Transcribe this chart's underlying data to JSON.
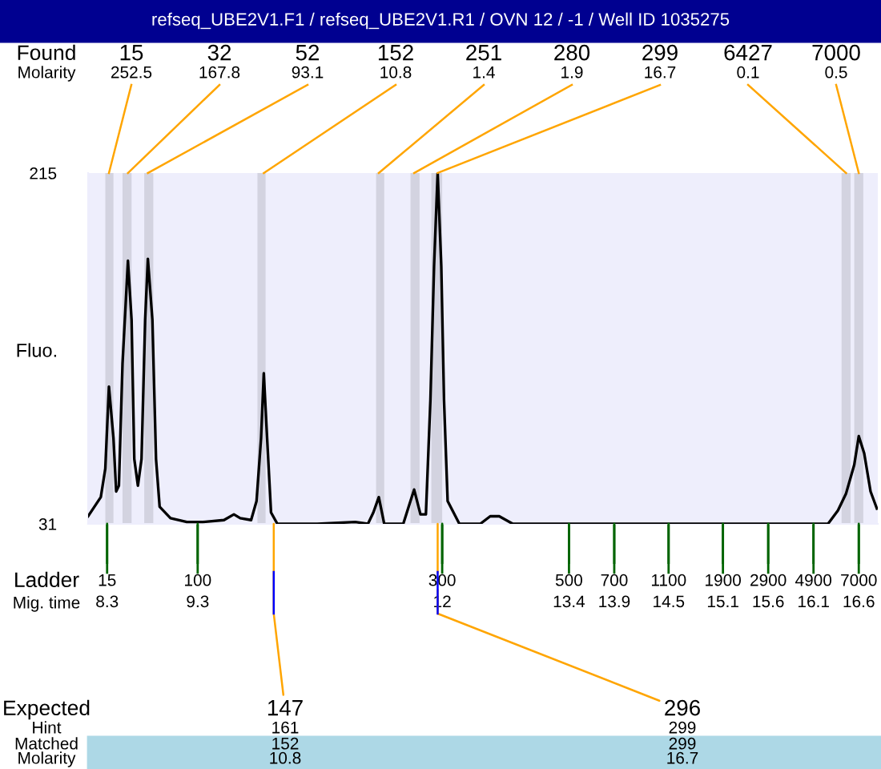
{
  "chart_data": {
    "type": "line",
    "title": "refseq_UBE2V1.F1 / refseq_UBE2V1.R1 / OVN 12 / -1 / Well ID 1035275",
    "ylabel": "Fluo.",
    "color": "#000000",
    "grid": false,
    "x": [
      8.09,
      8.23,
      8.28,
      8.32,
      8.37,
      8.4,
      8.43,
      8.47,
      8.53,
      8.57,
      8.6,
      8.64,
      8.68,
      8.72,
      8.75,
      8.8,
      8.84,
      8.88,
      9.0,
      9.18,
      9.36,
      9.59,
      9.7,
      9.77,
      9.89,
      9.95,
      10.0,
      10.03,
      10.06,
      10.11,
      10.18,
      10.48,
      10.62,
      11.04,
      11.18,
      11.24,
      11.3,
      11.36,
      11.57,
      11.63,
      11.69,
      11.76,
      11.82,
      11.87,
      11.91,
      11.95,
      11.99,
      12.02,
      12.06,
      12.19,
      12.42,
      12.53,
      12.63,
      12.78,
      13.13,
      13.31,
      14.14,
      14.64,
      15.61,
      16.26,
      16.37,
      16.46,
      16.55,
      16.6,
      16.66,
      16.73,
      16.8
    ],
    "values": [
      35,
      45,
      60,
      103,
      76,
      48,
      51,
      115,
      169,
      138,
      65,
      51,
      65,
      138,
      170,
      138,
      65,
      40,
      34,
      32,
      32,
      33,
      36,
      34,
      33,
      43,
      76,
      110,
      82,
      37,
      31,
      31,
      31,
      32,
      31,
      37,
      45,
      31,
      31,
      40,
      49,
      36,
      36,
      96,
      166,
      215,
      166,
      96,
      43,
      31,
      31,
      35,
      35,
      31,
      31,
      31,
      31,
      31,
      31,
      31,
      38,
      47,
      62,
      77,
      68,
      48,
      39
    ],
    "xlim": [
      8.09,
      16.81
    ],
    "ylim": [
      31,
      215
    ],
    "yticks": [
      31,
      215
    ],
    "xticks": [
      8.3,
      9.3,
      12,
      13.4,
      13.9,
      14.5,
      15.1,
      15.6,
      16.1,
      16.6
    ],
    "bands": [
      {
        "axis": "x",
        "from": 8.28,
        "to": 8.37,
        "color": "#d3d3e0"
      },
      {
        "axis": "x",
        "from": 8.47,
        "to": 8.57,
        "color": "#d3d3e0"
      },
      {
        "axis": "x",
        "from": 8.71,
        "to": 8.81,
        "color": "#d3d3e0"
      },
      {
        "axis": "x",
        "from": 9.96,
        "to": 10.05,
        "color": "#d3d3e0"
      },
      {
        "axis": "x",
        "from": 11.27,
        "to": 11.36,
        "color": "#d3d3e0"
      },
      {
        "axis": "x",
        "from": 11.65,
        "to": 11.75,
        "color": "#d3d3e0"
      },
      {
        "axis": "x",
        "from": 11.88,
        "to": 12.0,
        "color": "#d3d3e0"
      },
      {
        "axis": "x",
        "from": 16.41,
        "to": 16.51,
        "color": "#d3d3e0"
      },
      {
        "axis": "x",
        "from": 16.55,
        "to": 16.65,
        "color": "#d3d3e0"
      }
    ],
    "annotations": [
      "Found",
      "Molarity",
      "Ladder",
      "Mig. time",
      "Expected",
      "Hint",
      "Matched",
      "Molarity",
      "161",
      "152",
      "10.8",
      "299",
      "299",
      "16.7",
      {
        "text": "15\n252.5",
        "x": 8.32,
        "y": 215
      },
      {
        "text": "32\n167.8",
        "x": 8.53,
        "y": 215
      },
      {
        "text": "52\n93.1",
        "x": 8.75,
        "y": 215
      },
      {
        "text": "152\n10.8",
        "x": 10.03,
        "y": 215
      },
      {
        "text": "251\n1.4",
        "x": 11.3,
        "y": 215
      },
      {
        "text": "280\n1.9",
        "x": 11.69,
        "y": 215
      },
      {
        "text": "299\n16.7",
        "x": 11.95,
        "y": 215
      },
      {
        "text": "6427\n0.1",
        "x": 16.46,
        "y": 215
      },
      {
        "text": "7000\n0.5",
        "x": 16.6,
        "y": 215
      },
      {
        "text": "15",
        "x": 8.3,
        "y": 31
      },
      {
        "text": "100",
        "x": 9.3,
        "y": 31
      },
      {
        "text": "300",
        "x": 12,
        "y": 31
      },
      {
        "text": "500",
        "x": 13.4,
        "y": 31
      },
      {
        "text": "700",
        "x": 13.9,
        "y": 31
      },
      {
        "text": "1100",
        "x": 14.5,
        "y": 31
      },
      {
        "text": "1900",
        "x": 15.1,
        "y": 31
      },
      {
        "text": "2900",
        "x": 15.6,
        "y": 31
      },
      {
        "text": "4900",
        "x": 16.1,
        "y": 31
      },
      {
        "text": "7000",
        "x": 16.6,
        "y": 31
      },
      {
        "text": "147",
        "x": 10.14,
        "y": 31
      },
      {
        "text": "296",
        "x": 11.95,
        "y": 31
      }
    ]
  }
}
